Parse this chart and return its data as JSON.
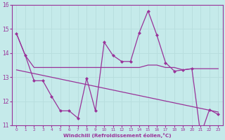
{
  "xlabel": "Windchill (Refroidissement éolien,°C)",
  "xlim": [
    -0.5,
    23.5
  ],
  "ylim": [
    11,
    16
  ],
  "yticks": [
    11,
    12,
    13,
    14,
    15,
    16
  ],
  "xticks": [
    0,
    1,
    2,
    3,
    4,
    5,
    6,
    7,
    8,
    9,
    10,
    11,
    12,
    13,
    14,
    15,
    16,
    17,
    18,
    19,
    20,
    21,
    22,
    23
  ],
  "background_color": "#c5eaea",
  "line_color": "#993399",
  "grid_color": "#aad4d4",
  "line1_y": [
    14.8,
    13.9,
    13.4,
    13.4,
    13.4,
    13.4,
    13.4,
    13.4,
    13.4,
    13.4,
    13.4,
    13.4,
    13.4,
    13.4,
    13.4,
    13.5,
    13.5,
    13.4,
    13.4,
    13.3,
    13.35,
    13.35,
    13.35,
    13.35
  ],
  "line2_y": [
    14.8,
    13.9,
    12.85,
    12.85,
    12.2,
    11.6,
    11.6,
    11.3,
    12.95,
    11.6,
    14.45,
    13.9,
    13.65,
    13.65,
    14.85,
    15.75,
    14.75,
    13.6,
    13.25,
    13.3,
    13.35,
    10.6,
    11.65,
    11.45
  ],
  "line3_x": [
    0,
    23
  ],
  "line3_y": [
    13.3,
    11.55
  ]
}
